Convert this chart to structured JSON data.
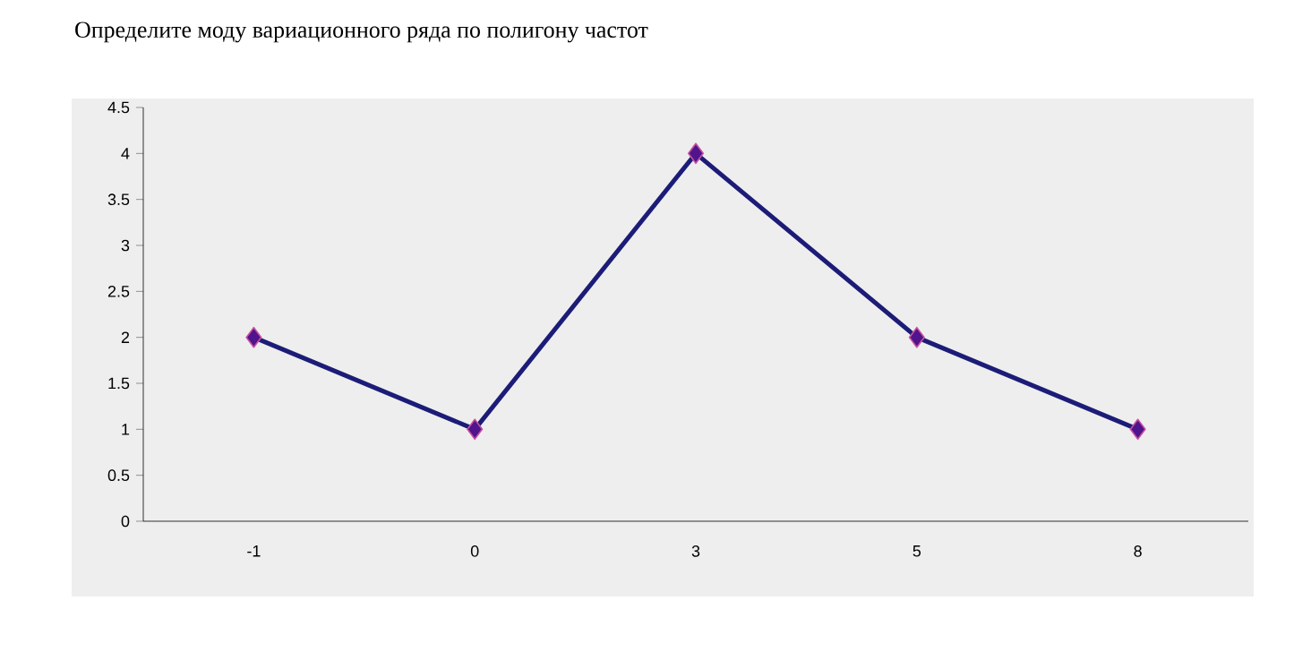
{
  "chart_data": {
    "type": "line",
    "title": "Определите моду вариационного ряда по полигону частот",
    "categories": [
      "-1",
      "0",
      "3",
      "5",
      "8"
    ],
    "series": [
      {
        "color": "#1c1c78",
        "values": [
          2,
          1,
          4,
          2,
          1
        ]
      }
    ],
    "ylim": [
      0,
      4.5
    ],
    "yticks": [
      0,
      0.5,
      1,
      1.5,
      2,
      2.5,
      3,
      3.5,
      4,
      4.5
    ],
    "grid": false,
    "marker": "diamond",
    "line_style": "solid"
  }
}
